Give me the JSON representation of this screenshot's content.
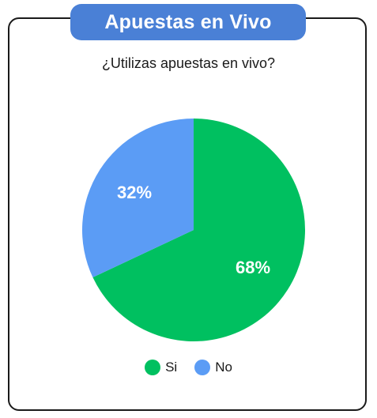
{
  "header": {
    "title": "Apuestas en Vivo"
  },
  "question": "¿Utilizas apuestas en vivo?",
  "chart_data": {
    "type": "pie",
    "title": "Apuestas en Vivo",
    "subtitle": "¿Utilizas apuestas en vivo?",
    "legend_position": "bottom",
    "slices": [
      {
        "name": "Si",
        "value": 68,
        "label": "68%",
        "color": "#00c060"
      },
      {
        "name": "No",
        "value": 32,
        "label": "32%",
        "color": "#5b9cf5"
      }
    ]
  },
  "legend": {
    "items": [
      {
        "label": "Si",
        "color": "#00c060"
      },
      {
        "label": "No",
        "color": "#5b9cf5"
      }
    ]
  }
}
